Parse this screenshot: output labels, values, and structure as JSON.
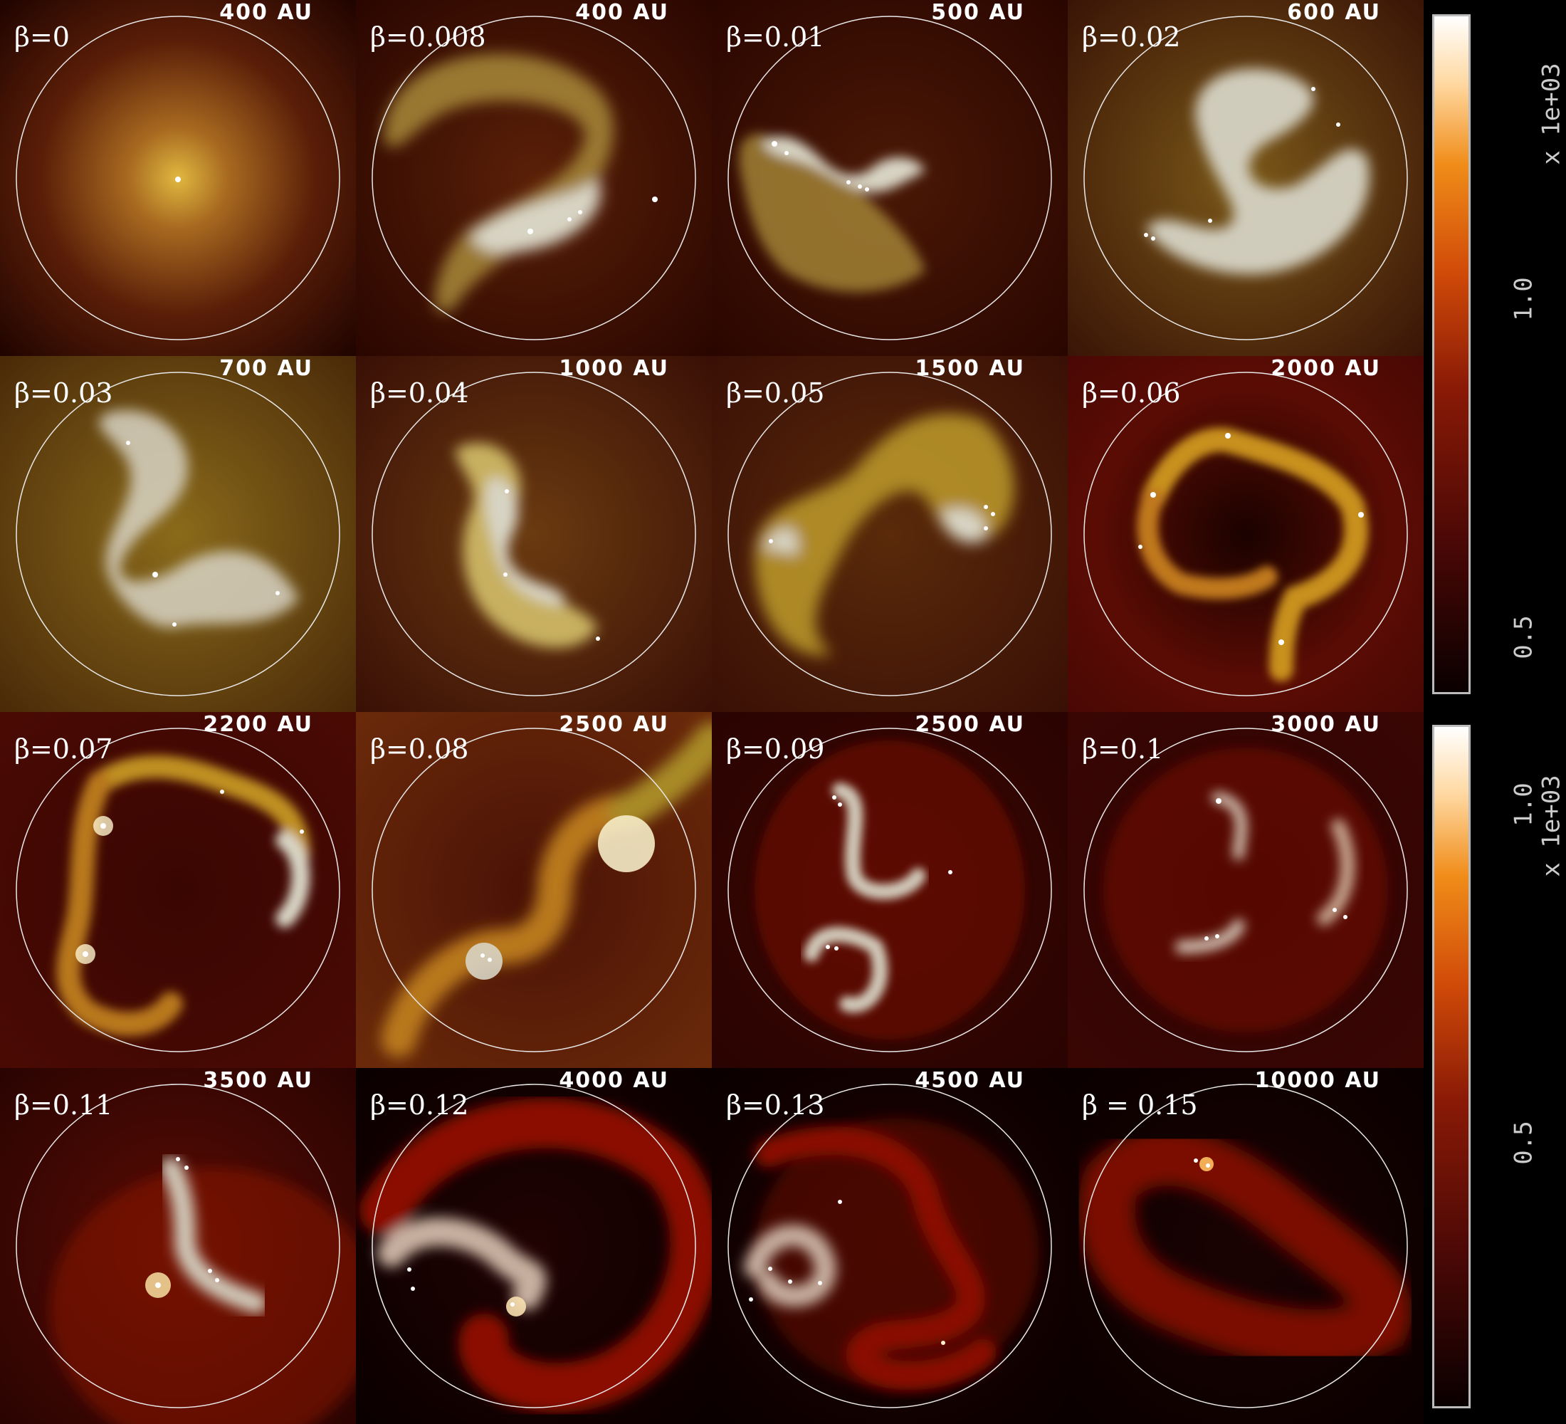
{
  "panels": [
    {
      "beta": "β=0",
      "scale": "400 AU"
    },
    {
      "beta": "β=0.008",
      "scale": "400 AU"
    },
    {
      "beta": "β=0.01",
      "scale": "500 AU"
    },
    {
      "beta": "β=0.02",
      "scale": "600 AU"
    },
    {
      "beta": "β=0.03",
      "scale": "700 AU"
    },
    {
      "beta": "β=0.04",
      "scale": "1000 AU"
    },
    {
      "beta": "β=0.05",
      "scale": "1500 AU"
    },
    {
      "beta": "β=0.06",
      "scale": "2000 AU"
    },
    {
      "beta": "β=0.07",
      "scale": "2200 AU"
    },
    {
      "beta": "β=0.08",
      "scale": "2500 AU"
    },
    {
      "beta": "β=0.09",
      "scale": "2500 AU"
    },
    {
      "beta": "β=0.1",
      "scale": "3000 AU"
    },
    {
      "beta": "β=0.11",
      "scale": "3500 AU"
    },
    {
      "beta": "β=0.12",
      "scale": "4000 AU"
    },
    {
      "beta": "β=0.13",
      "scale": "4500 AU"
    },
    {
      "beta": "β = 0.15",
      "scale": "10000 AU"
    }
  ],
  "colorbars": [
    {
      "multiplier": "x 1e+03",
      "tick_high": "1.0",
      "tick_low": "0.5"
    },
    {
      "multiplier": "x 1e+03",
      "tick_high": "1.0",
      "tick_low": "0.5"
    }
  ],
  "colors": {
    "yellow_gas": "#c9a020",
    "red_gas": "#a01808",
    "grey_gas": "#d8d4c4",
    "background": "#000000",
    "circle": "#e8e8e8"
  }
}
